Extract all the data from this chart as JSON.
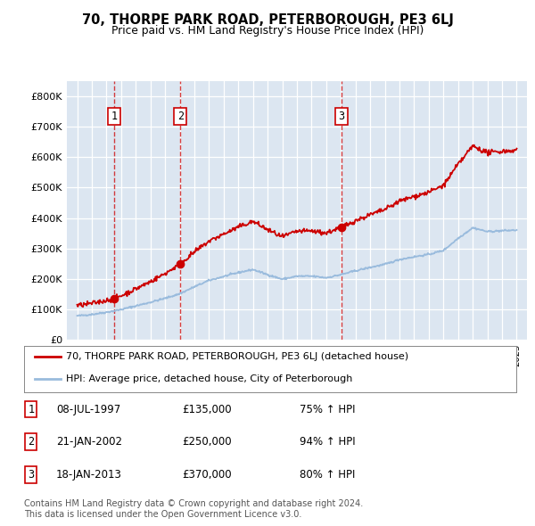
{
  "title": "70, THORPE PARK ROAD, PETERBOROUGH, PE3 6LJ",
  "subtitle": "Price paid vs. HM Land Registry's House Price Index (HPI)",
  "bg_color": "#dce6f1",
  "grid_color": "#ffffff",
  "sale_color": "#cc0000",
  "hpi_line_color": "#99bbdd",
  "ylim": [
    0,
    850000
  ],
  "yticks": [
    0,
    100000,
    200000,
    300000,
    400000,
    500000,
    600000,
    700000,
    800000
  ],
  "ytick_labels": [
    "£0",
    "£100K",
    "£200K",
    "£300K",
    "£400K",
    "£500K",
    "£600K",
    "£700K",
    "£800K"
  ],
  "xlim_min": 1994.3,
  "xlim_max": 2025.7,
  "transactions": [
    {
      "label": "1",
      "date": "08-JUL-1997",
      "x": 1997.52,
      "price": 135000
    },
    {
      "label": "2",
      "date": "21-JAN-2002",
      "x": 2002.05,
      "price": 250000
    },
    {
      "label": "3",
      "date": "18-JAN-2013",
      "x": 2013.05,
      "price": 370000
    }
  ],
  "legend_line1": "70, THORPE PARK ROAD, PETERBOROUGH, PE3 6LJ (detached house)",
  "legend_line2": "HPI: Average price, detached house, City of Peterborough",
  "footnote": "Contains HM Land Registry data © Crown copyright and database right 2024.\nThis data is licensed under the Open Government Licence v3.0.",
  "table_rows": [
    [
      "1",
      "08-JUL-1997",
      "£135,000",
      "75% ↑ HPI"
    ],
    [
      "2",
      "21-JAN-2002",
      "£250,000",
      "94% ↑ HPI"
    ],
    [
      "3",
      "18-JAN-2013",
      "£370,000",
      "80% ↑ HPI"
    ]
  ]
}
